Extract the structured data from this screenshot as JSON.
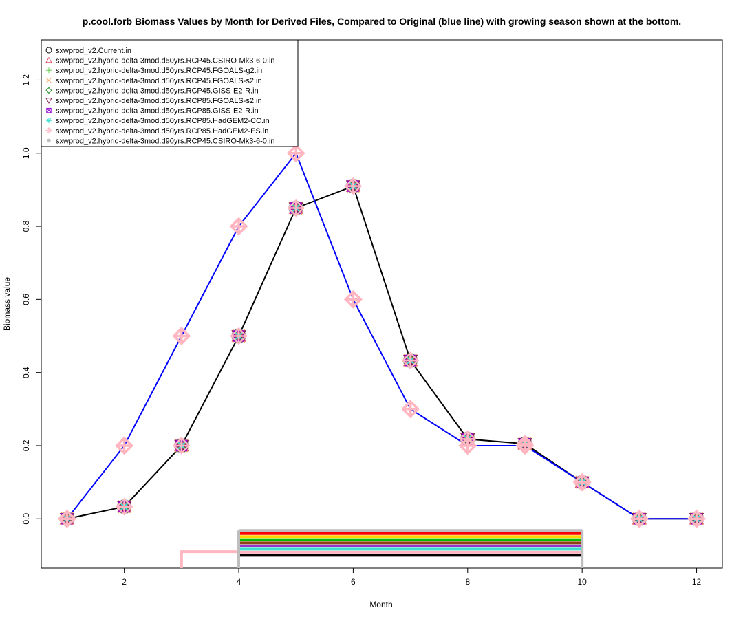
{
  "chart_data": {
    "type": "line",
    "title": "p.cool.forb Biomass Values by Month for Derived Files, Compared to Original (blue line) with growing season shown at the bottom.",
    "xlabel": "Month",
    "ylabel": "Biomass value",
    "xlim": [
      0.55,
      12.45
    ],
    "ylim": [
      -0.135,
      1.31
    ],
    "x_ticks": [
      2,
      4,
      6,
      8,
      10,
      12
    ],
    "y_ticks": [
      0.0,
      0.2,
      0.4,
      0.6,
      0.8,
      1.0,
      1.2
    ],
    "x_tick_labels": [
      "2",
      "4",
      "6",
      "8",
      "10",
      "12"
    ],
    "y_tick_labels": [
      "0.0",
      "0.2",
      "0.4",
      "0.6",
      "0.8",
      "1.0",
      "1.2"
    ],
    "x": [
      1,
      2,
      3,
      4,
      5,
      6,
      7,
      8,
      9,
      10,
      11,
      12
    ],
    "original": {
      "name": "Original",
      "color": "#0000ff",
      "values": [
        0.0,
        0.2,
        0.5,
        0.8,
        1.0,
        0.6,
        0.3,
        0.2,
        0.2,
        0.1,
        0.0,
        0.0
      ]
    },
    "derived_values": [
      0.0,
      0.033,
      0.2,
      0.5,
      0.85,
      0.91,
      0.433,
      0.218,
      0.205,
      0.1,
      0.0,
      0.0
    ],
    "series": [
      {
        "name": "sxwprod_v2.Current.in",
        "color": "#000000",
        "marker": "circle"
      },
      {
        "name": "sxwprod_v2.hybrid-delta-3mod.d50yrs.RCP45.CSIRO-Mk3-6-0.in",
        "color": "#df536b",
        "marker": "triangle"
      },
      {
        "name": "sxwprod_v2.hybrid-delta-3mod.d50yrs.RCP45.FGOALS-g2.in",
        "color": "#61d04f",
        "marker": "plus"
      },
      {
        "name": "sxwprod_v2.hybrid-delta-3mod.d50yrs.RCP45.FGOALS-s2.in",
        "color": "#f4a460",
        "marker": "cross"
      },
      {
        "name": "sxwprod_v2.hybrid-delta-3mod.d50yrs.RCP45.GISS-E2-R.in",
        "color": "#228b22",
        "marker": "diamond"
      },
      {
        "name": "sxwprod_v2.hybrid-delta-3mod.d50yrs.RCP85.FGOALS-s2.in",
        "color": "#8b2252",
        "marker": "triangle-down"
      },
      {
        "name": "sxwprod_v2.hybrid-delta-3mod.d50yrs.RCP85.GISS-E2-R.in",
        "color": "#9400d3",
        "marker": "square-x"
      },
      {
        "name": "sxwprod_v2.hybrid-delta-3mod.d50yrs.RCP85.HadGEM2-CC.in",
        "color": "#40e0d0",
        "marker": "asterisk"
      },
      {
        "name": "sxwprod_v2.hybrid-delta-3mod.d50yrs.RCP85.HadGEM2-ES.in",
        "color": "#ffb6c1",
        "marker": "diamond-plus"
      },
      {
        "name": "sxwprod_v2.hybrid-delta-3mod.d90yrs.RCP45.CSIRO-Mk3-6-0.in",
        "color": "#bebebe",
        "marker": "dot"
      }
    ],
    "growing_season": {
      "original": {
        "start_month": 3,
        "end_month": 10,
        "color": "#ffb6c1"
      },
      "derived": {
        "start_month": 4,
        "end_month": 10
      },
      "bar_colors": [
        "#bebebe",
        "#ff0000",
        "#ffd700",
        "#00c000",
        "#8b4513",
        "#9932cc",
        "#40e0d0",
        "#ffb6c1",
        "#000000"
      ]
    },
    "legend_position": "top-left",
    "grid": false
  }
}
